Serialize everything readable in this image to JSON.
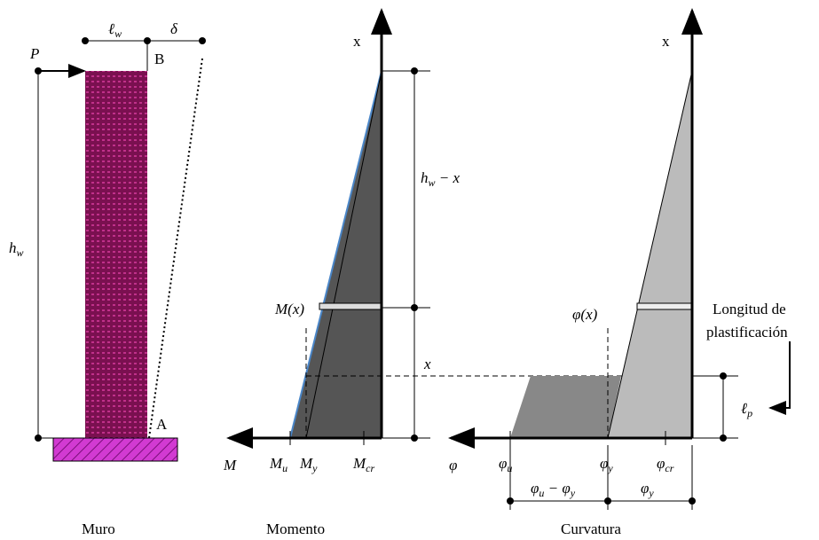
{
  "wall": {
    "load": "P",
    "width": {
      "base": "ℓ",
      "sub": "w"
    },
    "drift": "δ",
    "top_point": "B",
    "base_point": "A",
    "height": {
      "base": "h",
      "sub": "w"
    },
    "caption": "Muro"
  },
  "moment": {
    "axis_label": "x",
    "upper_length": {
      "base": "h",
      "sub": "w",
      "rest": " − x"
    },
    "section": "M(x)",
    "lower_length": "x",
    "axis": "M",
    "ticks": [
      {
        "base": "M",
        "sub": "u"
      },
      {
        "base": "M",
        "sub": "y"
      },
      {
        "base": "M",
        "sub": "cr"
      }
    ],
    "caption": "Momento"
  },
  "curvature": {
    "axis_label": "x",
    "section": "φ(x)",
    "note": [
      "Longitud de",
      "plastificación"
    ],
    "plastic_length": {
      "base": "ℓ",
      "sub": "p"
    },
    "axis": "φ",
    "ticks": [
      {
        "base": "φ",
        "sub": "u"
      },
      {
        "base": "φ",
        "sub": "y"
      },
      {
        "base": "φ",
        "sub": "cr"
      }
    ],
    "dims": [
      {
        "base": "φ",
        "sub": "u",
        "mid": " − φ",
        "sub2": "y"
      },
      {
        "base": "φ",
        "sub": "y"
      }
    ],
    "caption": "Curvatura"
  }
}
